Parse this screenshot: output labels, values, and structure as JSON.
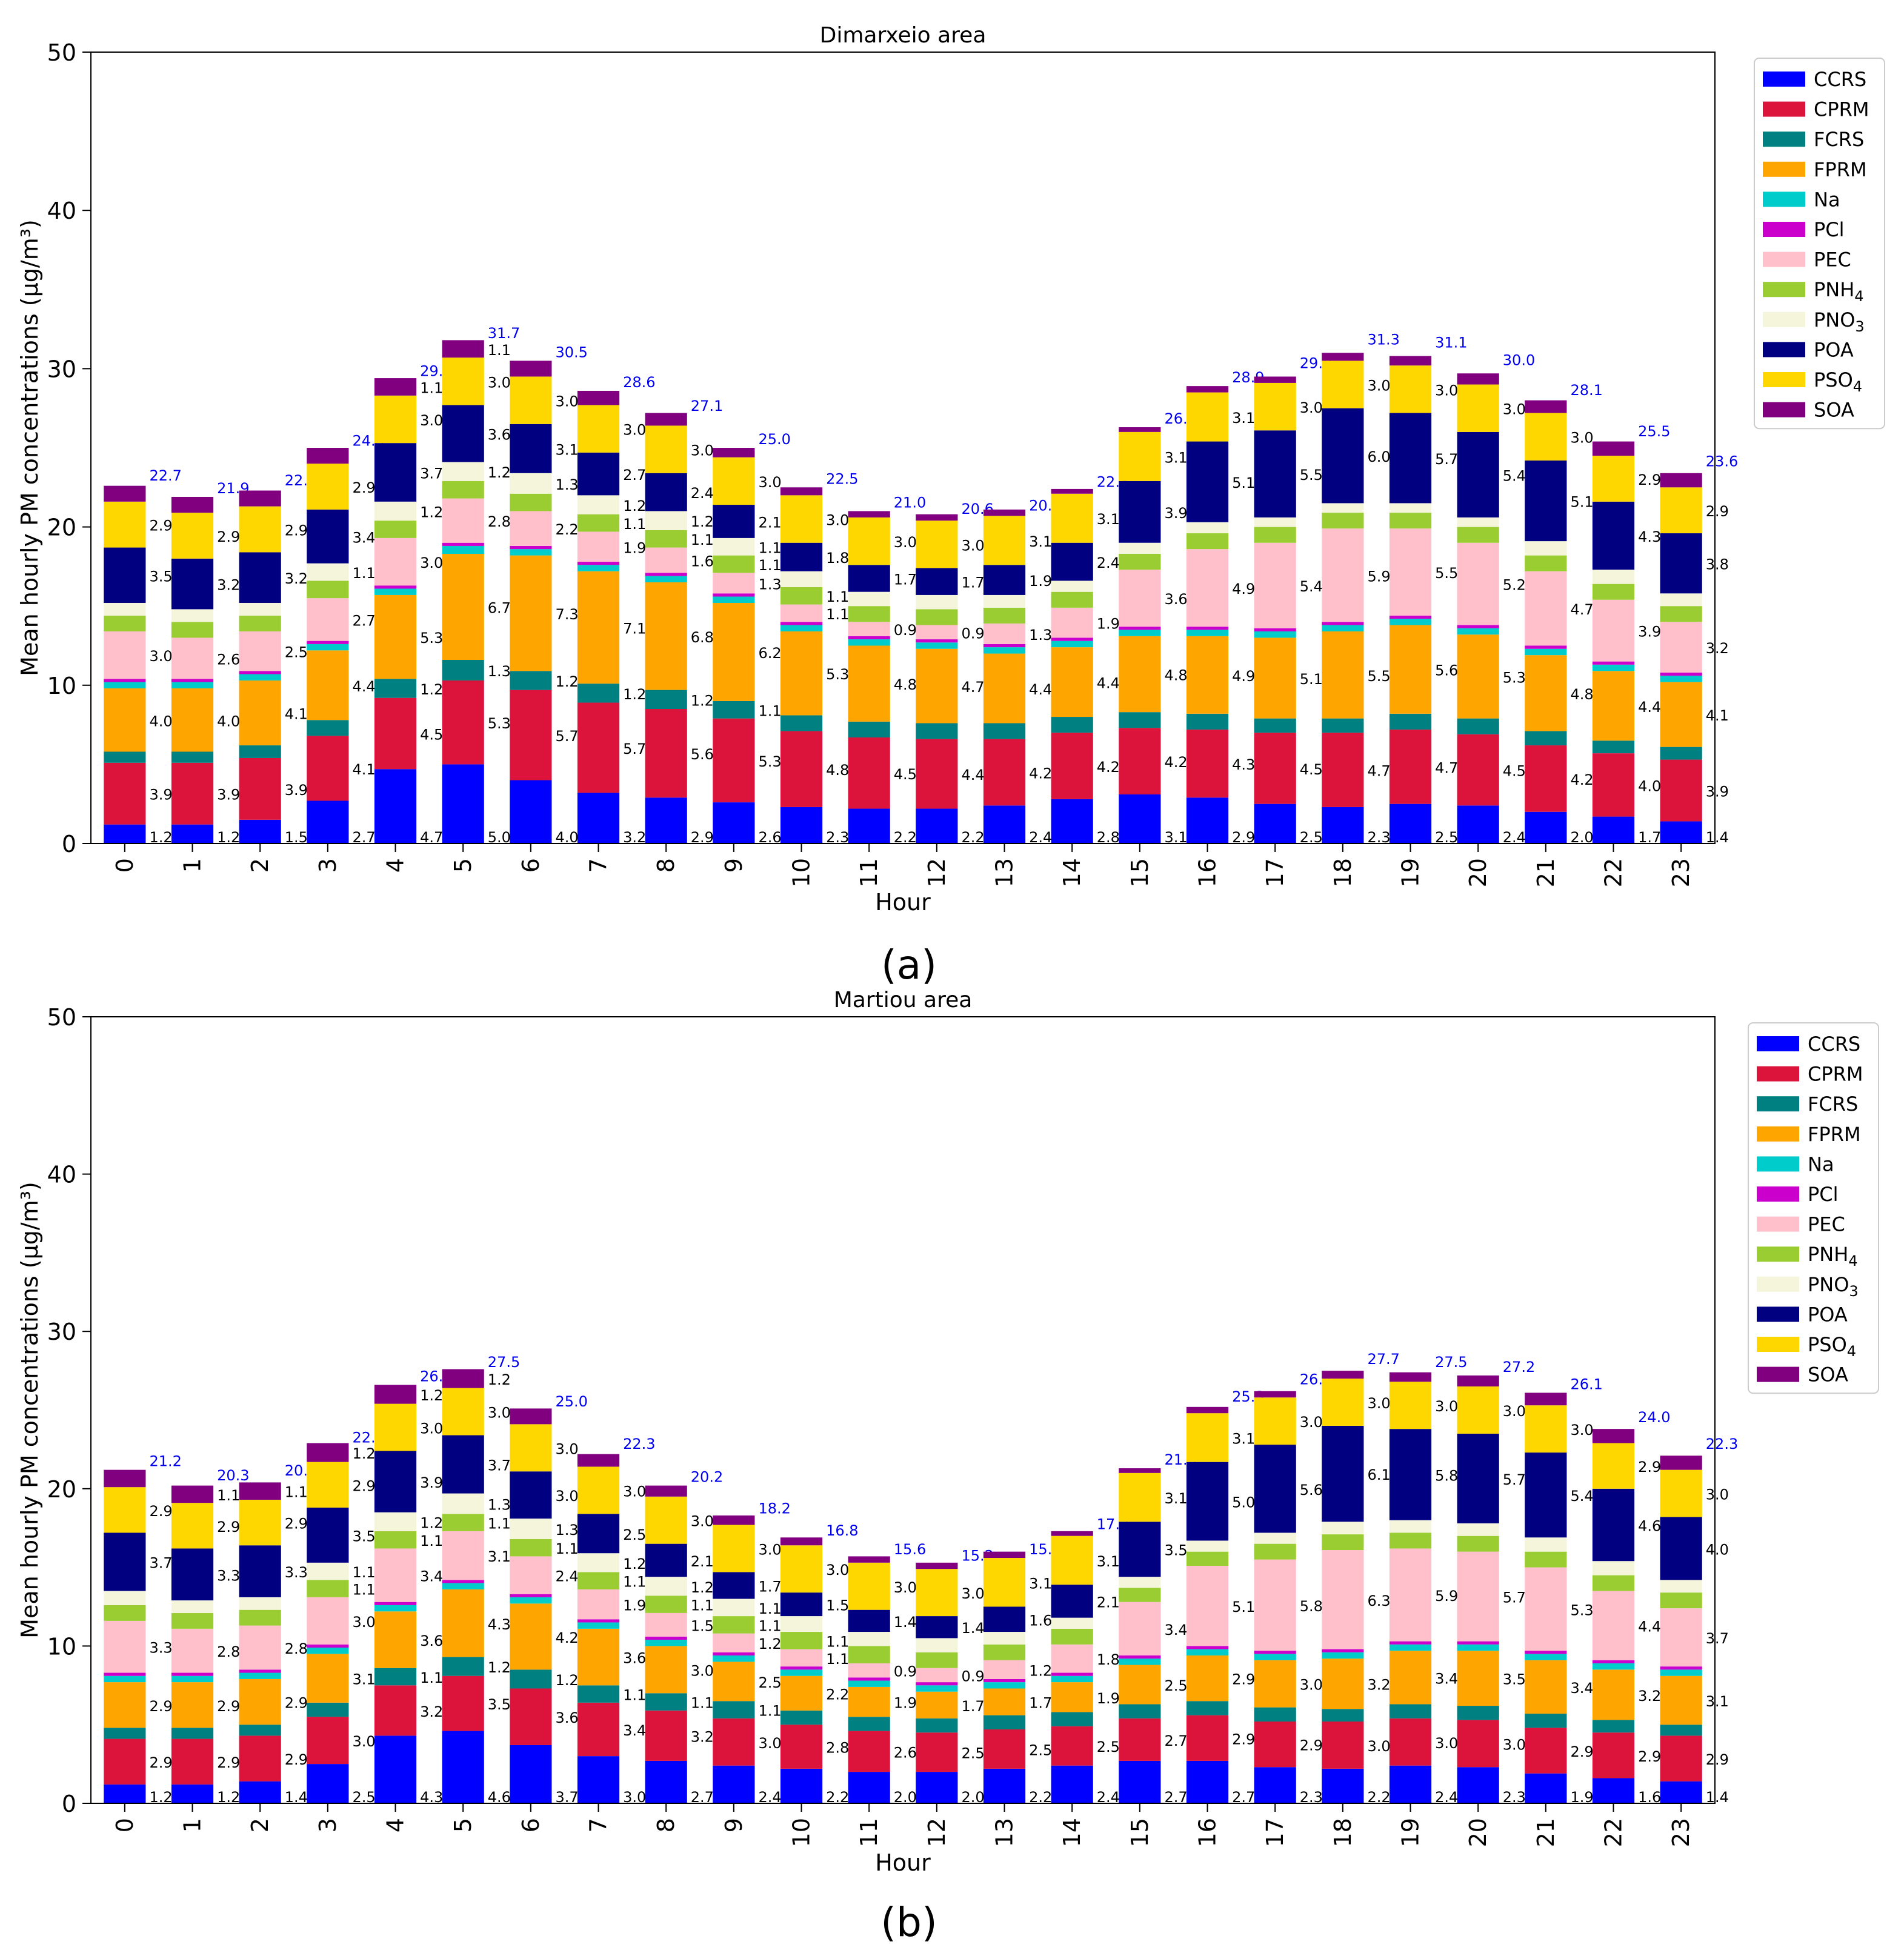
{
  "figure": {
    "panel_labels": [
      "a",
      "b"
    ],
    "colors": {
      "CCRS": "#0000ff",
      "CPRM": "#dc143c",
      "FCRS": "#008080",
      "FPRM": "#ffa500",
      "Na": "#00cccc",
      "PCl": "#cc00cc",
      "PEC": "#ffc0cb",
      "PNH4": "#9acd32",
      "PNO3": "#f5f5dc",
      "POA": "#000080",
      "PSO4": "#ffd700",
      "SOA": "#800080"
    }
  },
  "chart_data": [
    {
      "type": "bar",
      "stacked": true,
      "title": "Dimarxeio area",
      "xlabel": "Hour",
      "ylabel": "Mean hourly PM concentrations (μg/m³)",
      "ylim": [
        0,
        50
      ],
      "yticks": [
        0,
        10,
        20,
        30,
        40,
        50
      ],
      "legend_position": "outside-top-right",
      "categories": [
        "0",
        "1",
        "2",
        "3",
        "4",
        "5",
        "6",
        "7",
        "8",
        "9",
        "10",
        "11",
        "12",
        "13",
        "14",
        "15",
        "16",
        "17",
        "18",
        "19",
        "20",
        "21",
        "22",
        "23"
      ],
      "totals": [
        22.7,
        21.9,
        22.4,
        24.9,
        29.3,
        31.7,
        30.5,
        28.6,
        27.1,
        25.0,
        22.5,
        21.0,
        20.6,
        20.8,
        22.3,
        26.3,
        28.9,
        29.8,
        31.3,
        31.1,
        30.0,
        28.1,
        25.5,
        23.6
      ],
      "series": [
        {
          "name": "CCRS",
          "values": [
            1.2,
            1.2,
            1.5,
            2.7,
            4.7,
            5.0,
            4.0,
            3.2,
            2.9,
            2.6,
            2.3,
            2.2,
            2.2,
            2.4,
            2.8,
            3.1,
            2.9,
            2.5,
            2.3,
            2.5,
            2.4,
            2.0,
            1.7,
            1.4
          ]
        },
        {
          "name": "CPRM",
          "values": [
            3.9,
            3.9,
            3.9,
            4.1,
            4.5,
            5.3,
            5.7,
            5.7,
            5.6,
            5.3,
            4.8,
            4.5,
            4.4,
            4.2,
            4.2,
            4.2,
            4.3,
            4.5,
            4.7,
            4.7,
            4.5,
            4.2,
            4.0,
            3.9
          ]
        },
        {
          "name": "FCRS",
          "values": [
            0.7,
            0.7,
            0.8,
            1.0,
            1.2,
            1.3,
            1.2,
            1.2,
            1.2,
            1.1,
            1.0,
            1.0,
            1.0,
            1.0,
            1.0,
            1.0,
            1.0,
            0.9,
            0.9,
            1.0,
            1.0,
            0.9,
            0.8,
            0.8
          ]
        },
        {
          "name": "FPRM",
          "values": [
            4.0,
            4.0,
            4.1,
            4.4,
            5.3,
            6.7,
            7.3,
            7.1,
            6.8,
            6.2,
            5.3,
            4.8,
            4.7,
            4.4,
            4.4,
            4.8,
            4.9,
            5.1,
            5.5,
            5.6,
            5.3,
            4.8,
            4.4,
            4.1
          ]
        },
        {
          "name": "Na",
          "values": [
            0.4,
            0.4,
            0.4,
            0.4,
            0.4,
            0.5,
            0.4,
            0.4,
            0.4,
            0.4,
            0.4,
            0.4,
            0.4,
            0.4,
            0.4,
            0.4,
            0.4,
            0.4,
            0.4,
            0.4,
            0.4,
            0.4,
            0.4,
            0.4
          ]
        },
        {
          "name": "PCl",
          "values": [
            0.2,
            0.2,
            0.2,
            0.2,
            0.2,
            0.2,
            0.2,
            0.2,
            0.2,
            0.2,
            0.2,
            0.2,
            0.2,
            0.2,
            0.2,
            0.2,
            0.2,
            0.2,
            0.2,
            0.2,
            0.2,
            0.2,
            0.2,
            0.2
          ]
        },
        {
          "name": "PEC",
          "values": [
            3.0,
            2.6,
            2.5,
            2.7,
            3.0,
            2.8,
            2.2,
            1.9,
            1.6,
            1.3,
            1.1,
            0.9,
            0.9,
            1.3,
            1.9,
            3.6,
            4.9,
            5.4,
            5.9,
            5.5,
            5.2,
            4.7,
            3.9,
            3.2
          ]
        },
        {
          "name": "PNH4",
          "values": [
            1.0,
            1.0,
            1.0,
            1.1,
            1.1,
            1.1,
            1.1,
            1.1,
            1.1,
            1.1,
            1.1,
            1.0,
            1.0,
            1.0,
            1.0,
            1.0,
            1.0,
            1.0,
            1.0,
            1.0,
            1.0,
            1.0,
            1.0,
            1.0
          ]
        },
        {
          "name": "PNO3",
          "values": [
            0.8,
            0.8,
            0.8,
            1.1,
            1.2,
            1.2,
            1.3,
            1.2,
            1.2,
            1.1,
            1.0,
            0.9,
            0.9,
            0.8,
            0.7,
            0.7,
            0.7,
            0.6,
            0.6,
            0.6,
            0.6,
            0.9,
            0.9,
            0.8
          ]
        },
        {
          "name": "POA",
          "values": [
            3.5,
            3.2,
            3.2,
            3.4,
            3.7,
            3.6,
            3.1,
            2.7,
            2.4,
            2.1,
            1.8,
            1.7,
            1.7,
            1.9,
            2.4,
            3.9,
            5.1,
            5.5,
            6.0,
            5.7,
            5.4,
            5.1,
            4.3,
            3.8
          ]
        },
        {
          "name": "PSO4",
          "values": [
            2.9,
            2.9,
            2.9,
            2.9,
            3.0,
            3.0,
            3.0,
            3.0,
            3.0,
            3.0,
            3.0,
            3.0,
            3.0,
            3.1,
            3.1,
            3.1,
            3.1,
            3.0,
            3.0,
            3.0,
            3.0,
            3.0,
            2.9,
            2.9
          ]
        },
        {
          "name": "SOA",
          "values": [
            1.0,
            1.0,
            1.0,
            1.0,
            1.1,
            1.1,
            1.0,
            0.9,
            0.8,
            0.6,
            0.5,
            0.4,
            0.4,
            0.4,
            0.3,
            0.3,
            0.4,
            0.4,
            0.5,
            0.6,
            0.7,
            0.8,
            0.9,
            0.9
          ]
        }
      ],
      "labeled_series": [
        "CCRS",
        "CPRM",
        "FPRM",
        "PEC",
        "POA",
        "PSO4"
      ],
      "small_labels": {
        "FCRS": {
          "4": "1.2",
          "5": "1.3",
          "6": "1.2",
          "7": "1.2",
          "8": "1.2",
          "9": "1.1"
        },
        "PNH4": {
          "7": "1.1",
          "8": "1.1",
          "9": "1.1",
          "10": "1.1"
        },
        "PNO3": {
          "3": "1.1",
          "4": "1.2",
          "5": "1.2",
          "6": "1.3",
          "7": "1.2",
          "8": "1.2",
          "9": "1.1"
        },
        "SOA": {
          "4": "1.1",
          "5": "1.1"
        }
      }
    },
    {
      "type": "bar",
      "stacked": true,
      "title": "Martiou area",
      "xlabel": "Hour",
      "ylabel": "Mean hourly PM concentrations (μg/m³)",
      "ylim": [
        0,
        50
      ],
      "yticks": [
        0,
        10,
        20,
        30,
        40,
        50
      ],
      "legend_position": "outside-top-right",
      "categories": [
        "0",
        "1",
        "2",
        "3",
        "4",
        "5",
        "6",
        "7",
        "8",
        "9",
        "10",
        "11",
        "12",
        "13",
        "14",
        "15",
        "16",
        "17",
        "18",
        "19",
        "20",
        "21",
        "22",
        "23"
      ],
      "totals": [
        21.2,
        20.3,
        20.6,
        22.7,
        26.6,
        27.5,
        25.0,
        22.3,
        20.2,
        18.2,
        16.8,
        15.6,
        15.2,
        15.6,
        17.2,
        21.3,
        25.3,
        26.4,
        27.7,
        27.5,
        27.2,
        26.1,
        24.0,
        22.3
      ],
      "series": [
        {
          "name": "CCRS",
          "values": [
            1.2,
            1.2,
            1.4,
            2.5,
            4.3,
            4.6,
            3.7,
            3.0,
            2.7,
            2.4,
            2.2,
            2.0,
            2.0,
            2.2,
            2.4,
            2.7,
            2.7,
            2.3,
            2.2,
            2.4,
            2.3,
            1.9,
            1.6,
            1.4
          ]
        },
        {
          "name": "CPRM",
          "values": [
            2.9,
            2.9,
            2.9,
            3.0,
            3.2,
            3.5,
            3.6,
            3.4,
            3.2,
            3.0,
            2.8,
            2.6,
            2.5,
            2.5,
            2.5,
            2.7,
            2.9,
            2.9,
            3.0,
            3.0,
            3.0,
            2.9,
            2.9,
            2.9
          ]
        },
        {
          "name": "FCRS",
          "values": [
            0.7,
            0.7,
            0.7,
            0.9,
            1.1,
            1.2,
            1.2,
            1.1,
            1.1,
            1.1,
            0.9,
            0.9,
            0.9,
            0.9,
            0.9,
            0.9,
            0.9,
            0.9,
            0.8,
            0.9,
            0.9,
            0.9,
            0.8,
            0.7
          ]
        },
        {
          "name": "FPRM",
          "values": [
            2.9,
            2.9,
            2.9,
            3.1,
            3.6,
            4.3,
            4.2,
            3.6,
            3.0,
            2.5,
            2.2,
            1.9,
            1.7,
            1.7,
            1.9,
            2.5,
            2.9,
            3.0,
            3.2,
            3.4,
            3.5,
            3.4,
            3.2,
            3.1
          ]
        },
        {
          "name": "Na",
          "values": [
            0.4,
            0.4,
            0.4,
            0.4,
            0.4,
            0.4,
            0.4,
            0.4,
            0.4,
            0.4,
            0.4,
            0.4,
            0.4,
            0.4,
            0.4,
            0.4,
            0.4,
            0.4,
            0.4,
            0.4,
            0.4,
            0.4,
            0.4,
            0.4
          ]
        },
        {
          "name": "PCl",
          "values": [
            0.2,
            0.2,
            0.2,
            0.2,
            0.2,
            0.2,
            0.2,
            0.2,
            0.2,
            0.2,
            0.2,
            0.2,
            0.2,
            0.2,
            0.2,
            0.2,
            0.2,
            0.2,
            0.2,
            0.2,
            0.2,
            0.2,
            0.2,
            0.2
          ]
        },
        {
          "name": "PEC",
          "values": [
            3.3,
            2.8,
            2.8,
            3.0,
            3.4,
            3.1,
            2.4,
            1.9,
            1.5,
            1.2,
            1.1,
            0.9,
            0.9,
            1.2,
            1.8,
            3.4,
            5.1,
            5.8,
            6.3,
            5.9,
            5.7,
            5.3,
            4.4,
            3.7
          ]
        },
        {
          "name": "PNH4",
          "values": [
            1.0,
            1.0,
            1.0,
            1.1,
            1.1,
            1.1,
            1.1,
            1.1,
            1.1,
            1.1,
            1.1,
            1.1,
            1.0,
            1.0,
            1.0,
            0.9,
            0.9,
            1.0,
            1.0,
            1.0,
            1.0,
            1.0,
            1.0,
            1.0
          ]
        },
        {
          "name": "PNO3",
          "values": [
            0.9,
            0.8,
            0.8,
            1.1,
            1.2,
            1.3,
            1.3,
            1.2,
            1.2,
            1.1,
            1.0,
            0.9,
            0.9,
            0.8,
            0.7,
            0.7,
            0.7,
            0.7,
            0.8,
            0.8,
            0.8,
            0.9,
            0.9,
            0.8
          ]
        },
        {
          "name": "POA",
          "values": [
            3.7,
            3.3,
            3.3,
            3.5,
            3.9,
            3.7,
            3.0,
            2.5,
            2.1,
            1.7,
            1.5,
            1.4,
            1.4,
            1.6,
            2.1,
            3.5,
            5.0,
            5.6,
            6.1,
            5.8,
            5.7,
            5.4,
            4.6,
            4.0
          ]
        },
        {
          "name": "PSO4",
          "values": [
            2.9,
            2.9,
            2.9,
            2.9,
            3.0,
            3.0,
            3.0,
            3.0,
            3.0,
            3.0,
            3.0,
            3.0,
            3.0,
            3.1,
            3.1,
            3.1,
            3.1,
            3.0,
            3.0,
            3.0,
            3.0,
            3.0,
            2.9,
            3.0
          ]
        },
        {
          "name": "SOA",
          "values": [
            1.1,
            1.1,
            1.1,
            1.2,
            1.2,
            1.2,
            1.0,
            0.8,
            0.7,
            0.6,
            0.5,
            0.4,
            0.4,
            0.4,
            0.3,
            0.3,
            0.4,
            0.4,
            0.5,
            0.6,
            0.7,
            0.8,
            0.9,
            0.9
          ]
        }
      ],
      "labeled_series": [
        "CCRS",
        "CPRM",
        "FPRM",
        "PEC",
        "POA",
        "PSO4"
      ],
      "small_labels": {
        "FCRS": {
          "4": "1.1",
          "5": "1.2",
          "6": "1.2",
          "7": "1.1",
          "8": "1.1",
          "9": "1.1"
        },
        "PNH4": {
          "3": "1.1",
          "4": "1.1",
          "5": "1.1",
          "6": "1.1",
          "7": "1.1",
          "8": "1.1",
          "9": "1.1",
          "10": "1.1"
        },
        "PNO3": {
          "3": "1.1",
          "4": "1.2",
          "5": "1.3",
          "6": "1.3",
          "7": "1.2",
          "8": "1.2",
          "9": "1.1"
        },
        "SOA": {
          "1": "1.1",
          "2": "1.1",
          "3": "1.2",
          "4": "1.2",
          "5": "1.2"
        }
      }
    }
  ]
}
